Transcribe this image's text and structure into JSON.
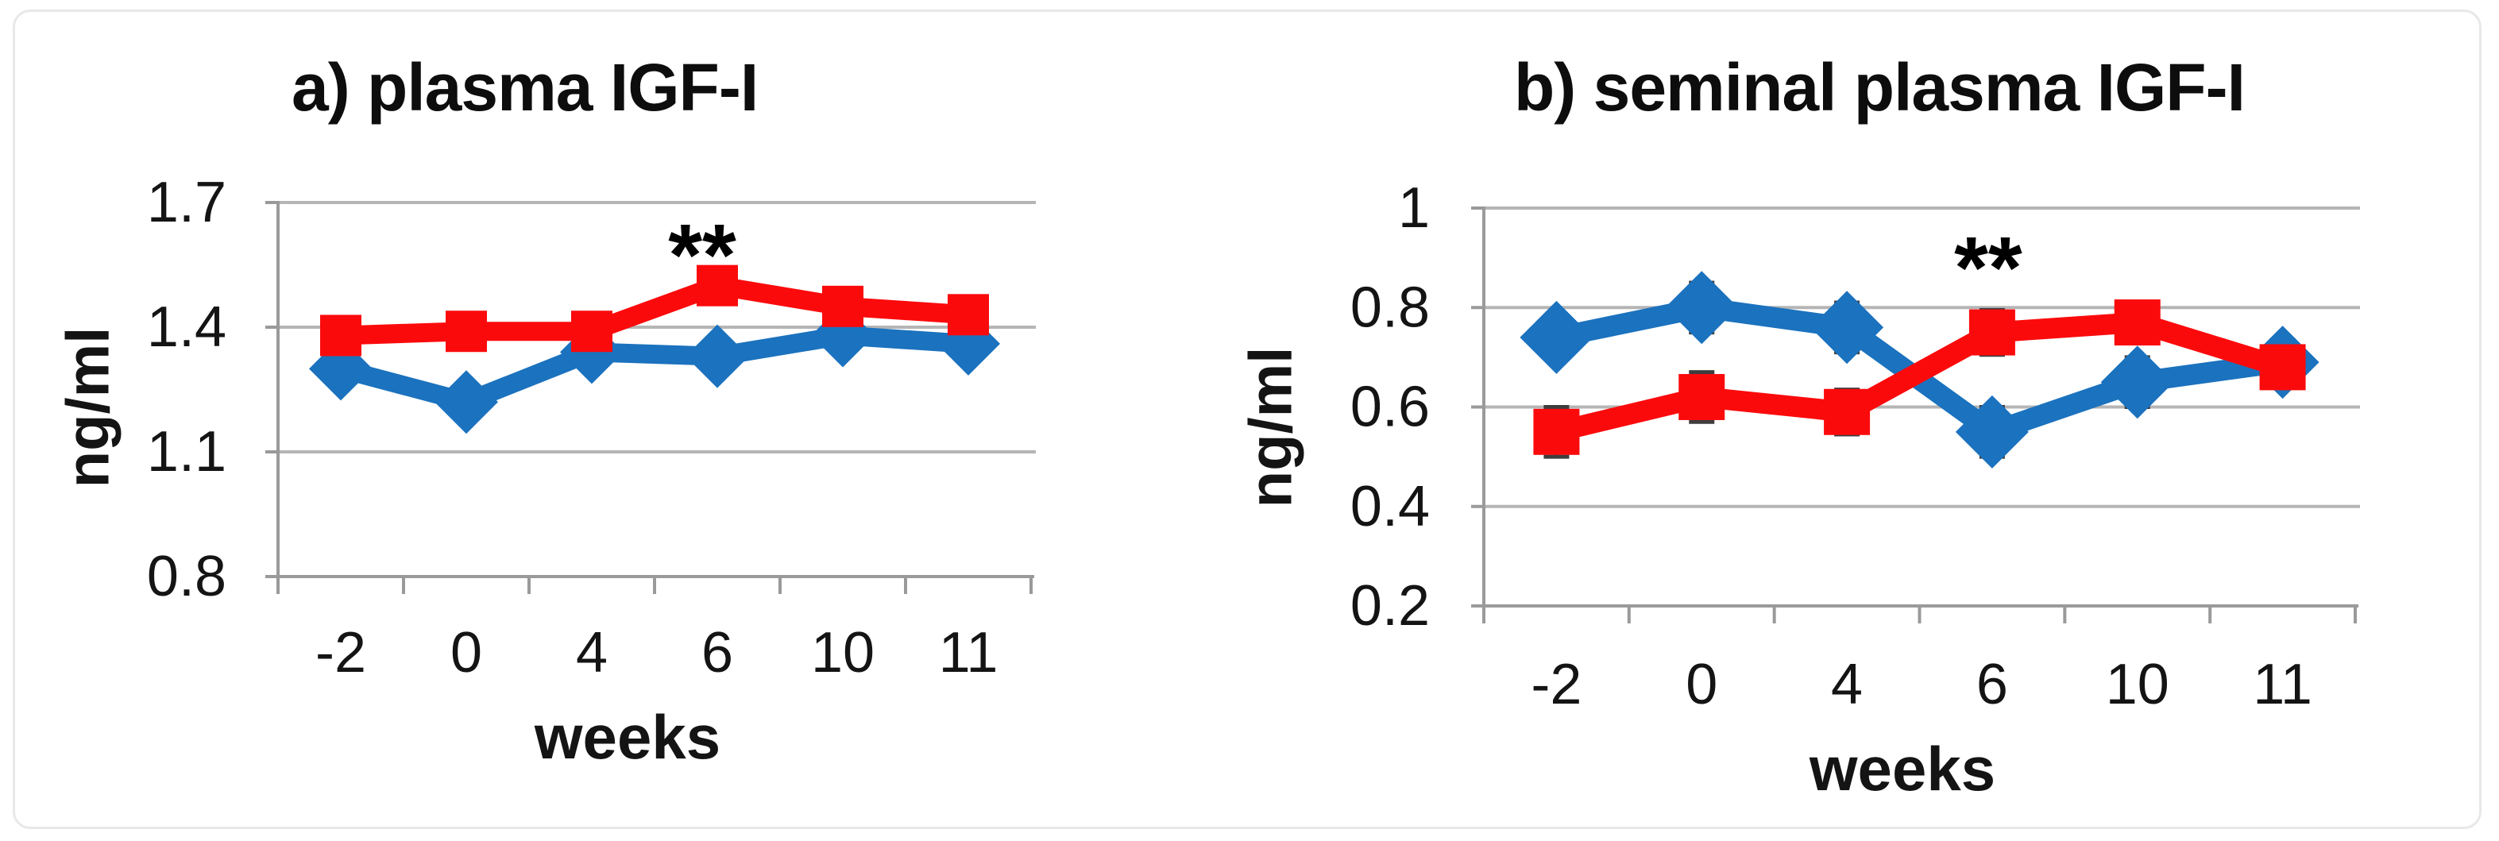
{
  "chart_data": [
    {
      "id": "a",
      "type": "line",
      "title": "a) plasma IGF-I",
      "xlabel": "weeks",
      "ylabel": "ng/ml",
      "categories": [
        "-2",
        "0",
        "4",
        "6",
        "10",
        "11"
      ],
      "ylim": [
        0.8,
        1.7
      ],
      "yticks": [
        1.7,
        1.4,
        1.1,
        0.8
      ],
      "ytick_labels": [
        "1.7",
        "1.4",
        "1.1",
        "0.8"
      ],
      "grid": true,
      "legend": "none",
      "series": [
        {
          "name": "blue",
          "color": "#1B72BE",
          "marker": "diamond",
          "values": [
            1.3,
            1.22,
            1.34,
            1.33,
            1.38,
            1.36
          ],
          "errors": [
            0.02,
            0.02,
            0.02,
            0.02,
            0.02,
            0.02
          ]
        },
        {
          "name": "red",
          "color": "#FB0A0C",
          "marker": "square",
          "values": [
            1.38,
            1.39,
            1.39,
            1.5,
            1.45,
            1.43
          ],
          "errors": [
            0.02,
            0.03,
            0.02,
            0.03,
            0.02,
            0.02
          ]
        }
      ],
      "annotations": [
        {
          "text": "**",
          "x_index": 3,
          "y": 1.585,
          "dx": -19
        }
      ]
    },
    {
      "id": "b",
      "type": "line",
      "title": "b) seminal plasma IGF-I",
      "xlabel": "weeks",
      "ylabel": "ng/ml",
      "categories": [
        "-2",
        "0",
        "4",
        "6",
        "10",
        "11"
      ],
      "ylim": [
        0.2,
        1.0
      ],
      "yticks": [
        1.0,
        0.8,
        0.6,
        0.4,
        0.2
      ],
      "ytick_labels": [
        "1",
        "0.8",
        "0.6",
        "0.4",
        "0.2"
      ],
      "grid": true,
      "legend": "none",
      "series": [
        {
          "name": "blue",
          "color": "#1B72BE",
          "marker": "diamond",
          "values": [
            0.74,
            0.8,
            0.76,
            0.55,
            0.65,
            0.69
          ],
          "errors": [
            0.04,
            0.05,
            0.05,
            0.05,
            0.05,
            0.045
          ]
        },
        {
          "name": "red",
          "color": "#FB0A0C",
          "marker": "square",
          "values": [
            0.55,
            0.62,
            0.59,
            0.75,
            0.77,
            0.68
          ],
          "errors": [
            0.05,
            0.05,
            0.045,
            0.045,
            0.04,
            0.04
          ]
        }
      ],
      "annotations": [
        {
          "text": "**",
          "x_index": 3,
          "y": 0.89,
          "dx": -5
        }
      ]
    }
  ]
}
